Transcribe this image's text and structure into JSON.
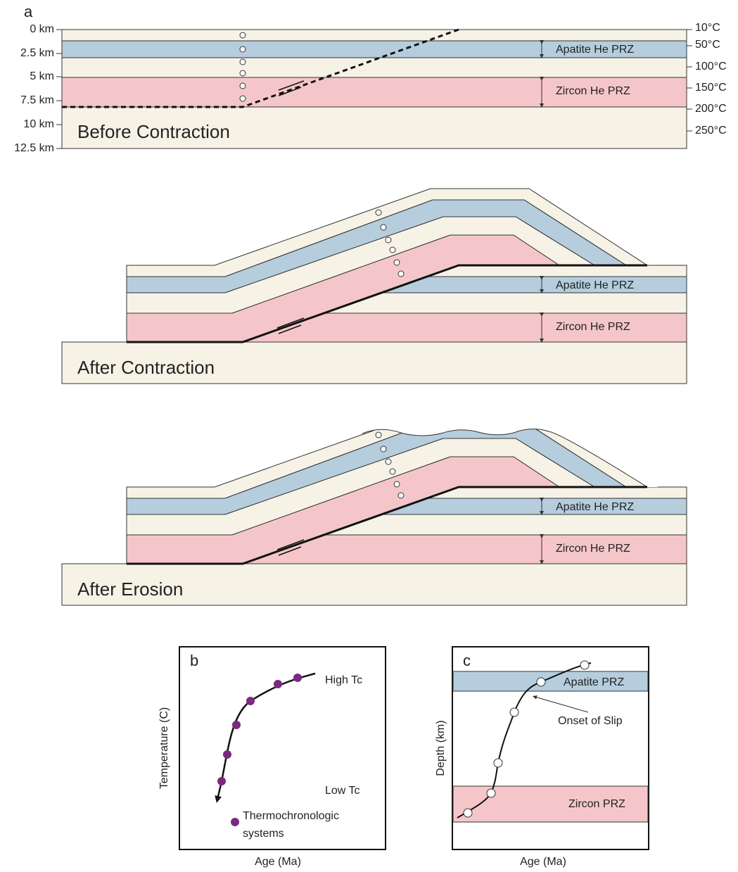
{
  "panel_a": {
    "label": "a",
    "depth_labels": [
      "0 km",
      "2.5 km",
      "5 km",
      "7.5 km",
      "10 km",
      "12.5 km"
    ],
    "temperature_labels": [
      "10°C",
      "50°C",
      "100°C",
      "150°C",
      "200°C",
      "250°C"
    ],
    "sections": [
      {
        "title": "Before Contraction",
        "apatite_label": "Apatite He PRZ",
        "zircon_label": "Zircon He PRZ"
      },
      {
        "title": "After Contraction",
        "apatite_label": "Apatite He PRZ",
        "zircon_label": "Zircon He PRZ"
      },
      {
        "title": "After Erosion",
        "apatite_label": "Apatite He PRZ",
        "zircon_label": "Zircon He PRZ"
      }
    ]
  },
  "panel_b": {
    "label": "b",
    "high_label": "High Tc",
    "low_label": "Low Tc",
    "legend_label": [
      "Thermochronologic",
      "systems"
    ],
    "y_label": "Temperature (C)",
    "x_label": "Age (Ma)"
  },
  "panel_c": {
    "label": "c",
    "apatite_label": "Apatite PRZ",
    "annotation": "Onset of Slip",
    "zircon_label": "Zircon PRZ",
    "y_label": "Depth (km)",
    "x_label": "Age (Ma)"
  }
}
